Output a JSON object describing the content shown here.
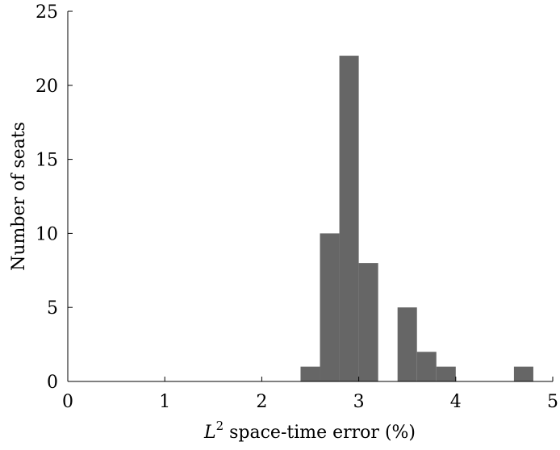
{
  "chart_data": {
    "type": "bar",
    "subtype": "histogram",
    "xlabel_main": "L",
    "xlabel_sup": "2",
    "xlabel_rest": " space-time error (%)",
    "ylabel": "Number of seats",
    "xlim": [
      0,
      5
    ],
    "ylim": [
      0,
      25
    ],
    "xticks": [
      0,
      1,
      2,
      3,
      4,
      5
    ],
    "yticks": [
      0,
      5,
      10,
      15,
      20,
      25
    ],
    "grid": false,
    "bar_color": "#666666",
    "bins": [
      {
        "x0": 2.4,
        "x1": 2.6,
        "count": 1
      },
      {
        "x0": 2.6,
        "x1": 2.8,
        "count": 10
      },
      {
        "x0": 2.8,
        "x1": 3.0,
        "count": 22
      },
      {
        "x0": 3.0,
        "x1": 3.2,
        "count": 8
      },
      {
        "x0": 3.4,
        "x1": 3.6,
        "count": 5
      },
      {
        "x0": 3.6,
        "x1": 3.8,
        "count": 2
      },
      {
        "x0": 3.8,
        "x1": 4.0,
        "count": 1
      },
      {
        "x0": 4.6,
        "x1": 4.8,
        "count": 1
      }
    ]
  }
}
